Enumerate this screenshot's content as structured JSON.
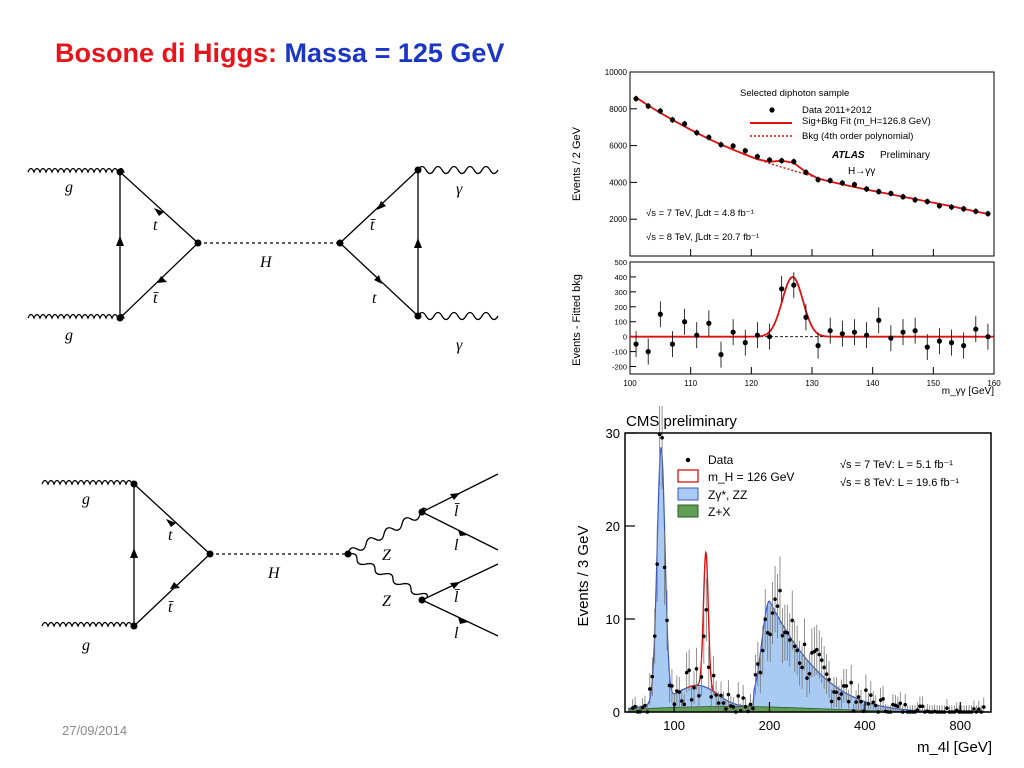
{
  "slide": {
    "title_part1": "Bosone di Higgs:",
    "title_part2": "Massa = 125 GeV",
    "date": "27/09/2014"
  },
  "diagram1": {
    "g_top": "g",
    "g_bottom": "g",
    "t": "t",
    "tbar": "t̄",
    "H": "H",
    "tbar_right": "t̄",
    "t_right": "t",
    "gamma_top": "γ",
    "gamma_bottom": "γ"
  },
  "diagram2": {
    "g_top": "g",
    "g_bottom": "g",
    "t": "t",
    "tbar": "t̄",
    "H": "H",
    "Z_top": "Z",
    "Z_bottom": "Z",
    "lbar_top": "l̄",
    "l_top": "l",
    "lbar_bottom": "l̄",
    "l_bottom": "l"
  },
  "chart_data": [
    {
      "type": "scatter",
      "panel": "atlas-top",
      "ylabel": "Events / 2 GeV",
      "xlim": [
        100,
        160
      ],
      "ylim": [
        0,
        10000
      ],
      "yticks": [
        "2000",
        "4000",
        "6000",
        "8000",
        "10000"
      ],
      "legend_title": "Selected diphoton sample",
      "legend": [
        "Data 2011+2012",
        "Sig+Bkg Fit (m_H=126.8 GeV)",
        "Bkg (4th order polynomial)"
      ],
      "experiment": "ATLAS",
      "status": "Preliminary",
      "channel": "H→γγ",
      "lumi1": "√s = 7 TeV, ∫Ldt = 4.8 fb⁻¹",
      "lumi2": "√s = 8 TeV, ∫Ldt = 20.7 fb⁻¹",
      "x": [
        101,
        103,
        105,
        107,
        109,
        111,
        113,
        115,
        117,
        119,
        121,
        123,
        125,
        127,
        129,
        131,
        133,
        135,
        137,
        139,
        141,
        143,
        145,
        147,
        149,
        151,
        153,
        155,
        157,
        159
      ],
      "y": [
        8550,
        8150,
        7880,
        7400,
        7180,
        6700,
        6450,
        6050,
        5980,
        5720,
        5400,
        5220,
        5180,
        5130,
        4550,
        4150,
        4100,
        3970,
        3880,
        3640,
        3500,
        3400,
        3220,
        3050,
        2960,
        2730,
        2660,
        2560,
        2430,
        2300
      ],
      "fit_y": [
        8620,
        8180,
        7780,
        7400,
        7040,
        6690,
        6360,
        6060,
        5780,
        5510,
        5260,
        5120,
        5180,
        5060,
        4560,
        4210,
        4040,
        3890,
        3750,
        3610,
        3480,
        3350,
        3220,
        3090,
        2960,
        2830,
        2700,
        2560,
        2420,
        2280
      ],
      "bkg_y": [
        8620,
        8180,
        7780,
        7400,
        7040,
        6690,
        6360,
        6060,
        5780,
        5510,
        5260,
        5030,
        4830,
        4630,
        4440,
        4250,
        4040,
        3890,
        3750,
        3610,
        3480,
        3350,
        3220,
        3090,
        2960,
        2830,
        2700,
        2560,
        2420,
        2280
      ]
    },
    {
      "type": "scatter",
      "panel": "atlas-bottom",
      "ylabel": "Events - Fitted bkg",
      "xlabel": "m_γγ [GeV]",
      "xlim": [
        100,
        160
      ],
      "ylim": [
        -250,
        500
      ],
      "xticks": [
        "100",
        "110",
        "120",
        "130",
        "140",
        "150",
        "160"
      ],
      "yticks": [
        "-200",
        "-100",
        "0",
        "100",
        "200",
        "300",
        "400",
        "500"
      ],
      "x": [
        101,
        103,
        105,
        107,
        109,
        111,
        113,
        115,
        117,
        119,
        121,
        123,
        125,
        127,
        129,
        131,
        133,
        135,
        137,
        139,
        141,
        143,
        145,
        147,
        149,
        151,
        153,
        155,
        157,
        159
      ],
      "y": [
        -50,
        -100,
        150,
        -50,
        100,
        10,
        90,
        -120,
        30,
        -40,
        10,
        0,
        320,
        345,
        130,
        -60,
        40,
        20,
        30,
        10,
        110,
        -10,
        30,
        40,
        -70,
        -30,
        -40,
        -60,
        50,
        0
      ],
      "signal_mean": 126.8,
      "signal_peak": 400
    },
    {
      "type": "bar",
      "panel": "cms",
      "title": "CMS preliminary",
      "ylabel": "Events / 3 GeV",
      "xlabel": "m_4l [GeV]",
      "xticks": [
        "100",
        "200",
        "400",
        "800"
      ],
      "yticks": [
        "0",
        "10",
        "20",
        "30"
      ],
      "ylim": [
        0,
        30
      ],
      "legend": [
        "Data",
        "m_H = 126 GeV",
        "Zγ*, ZZ",
        "Z+X"
      ],
      "lumi1": "√s = 7 TeV: L =  5.1 fb⁻¹",
      "lumi2": "√s = 8 TeV: L = 19.6 fb⁻¹",
      "zz_peak_mass": 91,
      "zz_peak_events": 27.3,
      "signal_peak_mass": 126,
      "signal_peak_events": 14.5,
      "continuum_peak_mass": 200,
      "continuum_peak_events": 11.4
    }
  ],
  "colors": {
    "title_red": "#e8141c",
    "title_blue": "#1b35c4",
    "fit_red": "#dd1111",
    "zz_blue": "#a9cbf3",
    "zx_green": "#5f9e54"
  }
}
